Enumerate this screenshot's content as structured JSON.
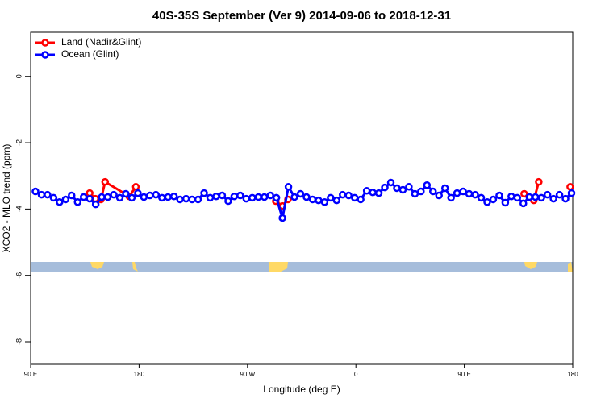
{
  "chart_data": {
    "type": "line",
    "title": "40S-35S September (Ver 9)   2014-09-06 to 2018-12-31",
    "xlabel": "Longitude (deg E)",
    "ylabel": "XCO2 - MLO trend (ppm)",
    "xlim": [
      90,
      540
    ],
    "ylim": [
      -8.68,
      1.33
    ],
    "xticks": [
      {
        "value": 90,
        "label": "90 E"
      },
      180,
      {
        "value": 270,
        "label": "90 W"
      },
      {
        "value": 360,
        "label": "0"
      },
      {
        "value": 450,
        "label": "90 E"
      },
      {
        "value": 540,
        "label": "180"
      }
    ],
    "yticks": [
      0,
      -2,
      -4,
      -6,
      -8
    ],
    "legend": "top-left",
    "series": [
      {
        "name": "Land (Nadir&Glint)",
        "color": "#ff0000",
        "x": [
          139.0,
          143.7,
          148.4,
          151.8,
          171.9,
          177.3,
          null,
          293.5,
          298.9,
          303.6,
          null,
          499.7,
          507.7,
          511.8,
          null,
          537.9
        ],
        "values": [
          -3.52,
          -3.69,
          -3.71,
          -3.18,
          -3.62,
          -3.33,
          null,
          -3.76,
          -3.91,
          -3.71,
          null,
          -3.54,
          -3.74,
          -3.18,
          null,
          -3.33
        ]
      },
      {
        "name": "Ocean (Glint)",
        "color": "#0000ff",
        "x": [
          94,
          99,
          104,
          109,
          114,
          119,
          124,
          129,
          134,
          139,
          144,
          149,
          154,
          159,
          164,
          169,
          174,
          179,
          184,
          189,
          194,
          199,
          204,
          209,
          214,
          219,
          224,
          229,
          234,
          239,
          244,
          249,
          254,
          259,
          264,
          269,
          274,
          279,
          284,
          289,
          294,
          299,
          304,
          309,
          314,
          319,
          324,
          329,
          334,
          339,
          344,
          349,
          354,
          359,
          364,
          369,
          374,
          379,
          384,
          389,
          394,
          399,
          404,
          409,
          414,
          419,
          424,
          429,
          434,
          439,
          444,
          449,
          454,
          459,
          464,
          469,
          474,
          479,
          484,
          489,
          494,
          499,
          504,
          509,
          514,
          519,
          524,
          529,
          534,
          539
        ],
        "values": [
          -3.47,
          -3.57,
          -3.57,
          -3.66,
          -3.79,
          -3.71,
          -3.59,
          -3.79,
          -3.64,
          -3.69,
          -3.86,
          -3.64,
          -3.64,
          -3.57,
          -3.66,
          -3.54,
          -3.66,
          -3.52,
          -3.64,
          -3.59,
          -3.57,
          -3.66,
          -3.64,
          -3.62,
          -3.71,
          -3.69,
          -3.71,
          -3.71,
          -3.52,
          -3.66,
          -3.62,
          -3.59,
          -3.76,
          -3.62,
          -3.59,
          -3.69,
          -3.66,
          -3.64,
          -3.64,
          -3.59,
          -3.66,
          -4.27,
          -3.33,
          -3.64,
          -3.54,
          -3.64,
          -3.71,
          -3.74,
          -3.79,
          -3.66,
          -3.74,
          -3.57,
          -3.59,
          -3.66,
          -3.71,
          -3.45,
          -3.5,
          -3.52,
          -3.35,
          -3.2,
          -3.37,
          -3.42,
          -3.33,
          -3.54,
          -3.47,
          -3.28,
          -3.47,
          -3.59,
          -3.37,
          -3.66,
          -3.52,
          -3.47,
          -3.54,
          -3.57,
          -3.66,
          -3.79,
          -3.71,
          -3.59,
          -3.81,
          -3.62,
          -3.66,
          -3.83,
          -3.64,
          -3.64,
          -3.66,
          -3.57,
          -3.69,
          -3.57,
          -3.69,
          -3.52
        ]
      }
    ]
  }
}
